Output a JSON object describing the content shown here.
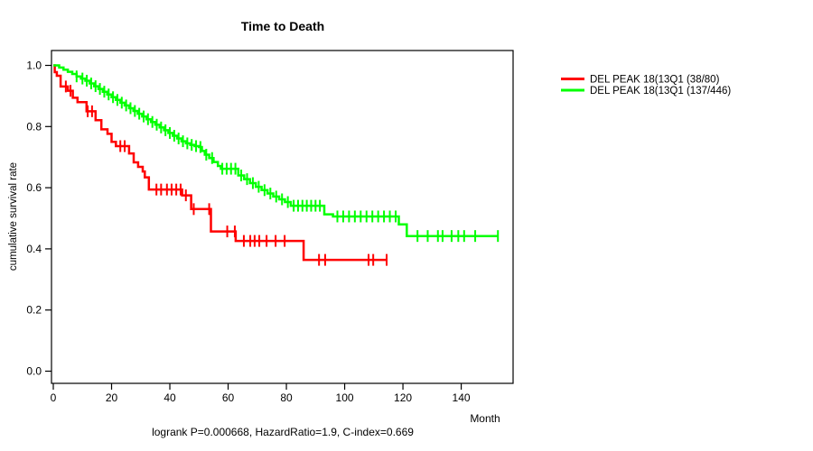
{
  "title": "Time to Death",
  "subtitle": "logrank P=0.000668, HazardRatio=1.9, C-index=0.669",
  "x_axis": {
    "label": "Month",
    "ticks": [
      "0",
      "20",
      "40",
      "60",
      "80",
      "100",
      "120",
      "140"
    ]
  },
  "y_axis": {
    "label": "cumulative survival rate",
    "ticks": [
      "0.0",
      "0.2",
      "0.4",
      "0.6",
      "0.8",
      "1.0"
    ]
  },
  "colors": {
    "series1": "#ff0000",
    "series2": "#00ff00",
    "axis": "#000000",
    "background": "#ffffff"
  },
  "chart_data": {
    "type": "line",
    "subtype": "kaplan-meier-step",
    "title": "Time to Death",
    "xlabel": "Month",
    "ylabel": "cumulative survival rate",
    "xlim": [
      0,
      158
    ],
    "ylim": [
      0,
      1.0
    ],
    "x_ticks": [
      0,
      20,
      40,
      60,
      80,
      100,
      120,
      140
    ],
    "y_ticks": [
      0.0,
      0.2,
      0.4,
      0.6,
      0.8,
      1.0
    ],
    "grid": false,
    "legend_position": "right-outside",
    "series": [
      {
        "name": "DEL PEAK 18(13Q1 (38/80)",
        "color": "#ff0000",
        "end_month": 114.5,
        "steps": [
          [
            0,
            1.0
          ],
          [
            0.5,
            0.978
          ],
          [
            1.2,
            0.966
          ],
          [
            2.5,
            0.931
          ],
          [
            5,
            0.917
          ],
          [
            6.7,
            0.894
          ],
          [
            8.3,
            0.88
          ],
          [
            11.4,
            0.85
          ],
          [
            14.5,
            0.821
          ],
          [
            16.5,
            0.791
          ],
          [
            18.6,
            0.776
          ],
          [
            20,
            0.75
          ],
          [
            21.5,
            0.736
          ],
          [
            26,
            0.712
          ],
          [
            27.6,
            0.683
          ],
          [
            29.1,
            0.668
          ],
          [
            30.7,
            0.653
          ],
          [
            31.4,
            0.634
          ],
          [
            32.8,
            0.594
          ],
          [
            44.2,
            0.575
          ],
          [
            47.3,
            0.53
          ],
          [
            54.1,
            0.457
          ],
          [
            62.6,
            0.426
          ],
          [
            85.9,
            0.364
          ]
        ],
        "censor_months": [
          4.3,
          5.9,
          11.8,
          13.3,
          23,
          24.5,
          35.4,
          37,
          39,
          40.6,
          42.2,
          43.7,
          45.5,
          48.2,
          53.5,
          59.7,
          62.3,
          65.4,
          67.6,
          69.1,
          70.7,
          73.2,
          76.3,
          79.4,
          91.2,
          93.3,
          108.2,
          109.8,
          114.4
        ]
      },
      {
        "name": "DEL PEAK 18(13Q1 (137/446)",
        "color": "#00ff00",
        "end_month": 152.6,
        "steps": [
          [
            0,
            1.0
          ],
          [
            2,
            0.993
          ],
          [
            3.5,
            0.986
          ],
          [
            5,
            0.979
          ],
          [
            6.5,
            0.972
          ],
          [
            8,
            0.964
          ],
          [
            9.5,
            0.957
          ],
          [
            11,
            0.95
          ],
          [
            12.5,
            0.941
          ],
          [
            14,
            0.932
          ],
          [
            15.5,
            0.923
          ],
          [
            17,
            0.914
          ],
          [
            18.5,
            0.905
          ],
          [
            20,
            0.896
          ],
          [
            21.5,
            0.887
          ],
          [
            23,
            0.878
          ],
          [
            24.5,
            0.869
          ],
          [
            26,
            0.86
          ],
          [
            27.5,
            0.851
          ],
          [
            29,
            0.842
          ],
          [
            30.5,
            0.833
          ],
          [
            32,
            0.824
          ],
          [
            33.5,
            0.815
          ],
          [
            35,
            0.806
          ],
          [
            36.5,
            0.797
          ],
          [
            38,
            0.788
          ],
          [
            39.5,
            0.779
          ],
          [
            41,
            0.77
          ],
          [
            42.5,
            0.761
          ],
          [
            44,
            0.752
          ],
          [
            45.5,
            0.745
          ],
          [
            47,
            0.74
          ],
          [
            48.5,
            0.736
          ],
          [
            50,
            0.733
          ],
          [
            51,
            0.72
          ],
          [
            52,
            0.708
          ],
          [
            53.5,
            0.697
          ],
          [
            55,
            0.684
          ],
          [
            56.5,
            0.671
          ],
          [
            57.5,
            0.662
          ],
          [
            63.5,
            0.64
          ],
          [
            65.5,
            0.628
          ],
          [
            67.5,
            0.615
          ],
          [
            69.5,
            0.603
          ],
          [
            71.5,
            0.592
          ],
          [
            73.5,
            0.581
          ],
          [
            75.5,
            0.571
          ],
          [
            77.5,
            0.562
          ],
          [
            79.5,
            0.553
          ],
          [
            81.5,
            0.541
          ],
          [
            93,
            0.513
          ],
          [
            96,
            0.506
          ],
          [
            118.6,
            0.48
          ],
          [
            121.3,
            0.442
          ]
        ],
        "censor_months": [
          8,
          10,
          11.5,
          13,
          14.5,
          16,
          17.5,
          19,
          20.5,
          22,
          23.5,
          25,
          26.5,
          28,
          29.5,
          31,
          32.5,
          34,
          35.5,
          37,
          38.5,
          40,
          41.5,
          43,
          44.5,
          46,
          47.5,
          49,
          50.5,
          52.5,
          54.5,
          58,
          59.5,
          61,
          62.5,
          64.5,
          66.5,
          68.5,
          70.5,
          72.5,
          74.5,
          76.5,
          78.5,
          80.5,
          82.5,
          84,
          85.5,
          87,
          88.5,
          90,
          91.5,
          97.5,
          99.5,
          101.5,
          103.5,
          105.5,
          107.5,
          109.5,
          111.5,
          113.5,
          115.5,
          117.5,
          125,
          128.5,
          132,
          133.6,
          136.7,
          139,
          141,
          144.8,
          152.6
        ]
      }
    ]
  }
}
